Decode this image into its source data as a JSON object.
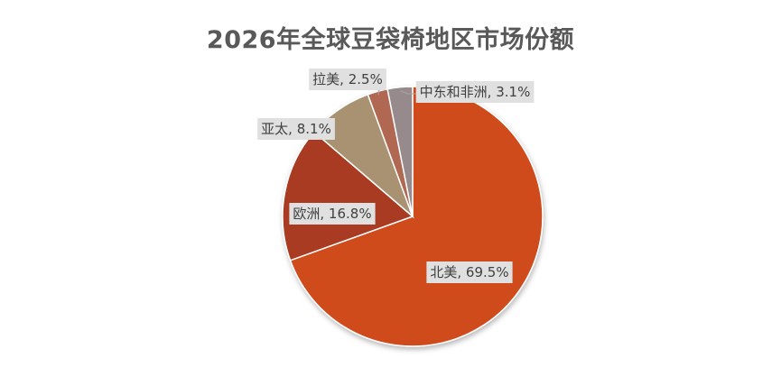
{
  "chart_data": {
    "type": "pie",
    "title": "2026年全球豆袋椅地区市场份额",
    "slices": [
      {
        "label": "北美",
        "value": 69.5,
        "display": "北美, 69.5%",
        "color": "#cf4b1c"
      },
      {
        "label": "欧洲",
        "value": 16.8,
        "display": "欧洲, 16.8%",
        "color": "#a83a24"
      },
      {
        "label": "亚太",
        "value": 8.1,
        "display": "亚太, 8.1%",
        "color": "#a89272"
      },
      {
        "label": "拉美",
        "value": 2.5,
        "display": "拉美, 2.5%",
        "color": "#b06752"
      },
      {
        "label": "中东和非洲",
        "value": 3.1,
        "display": "中东和非洲, 3.1%",
        "color": "#968a8c"
      }
    ],
    "legend": "none",
    "data_labels": "label, percent"
  }
}
